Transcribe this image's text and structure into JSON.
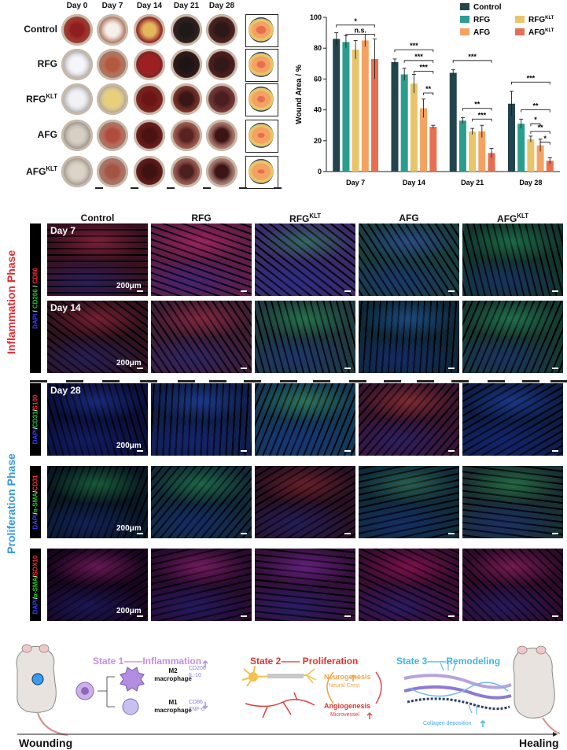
{
  "photo_panel": {
    "days": [
      "Day 0",
      "Day 7",
      "Day 14",
      "Day 21",
      "Day 28"
    ],
    "groups": [
      "Control",
      "RFG",
      "RFG",
      "AFG",
      "AFG"
    ],
    "group_sups": [
      "",
      "",
      "KLT",
      "",
      "KLT"
    ]
  },
  "stains": {
    "row1": [
      {
        "t": "DAPI",
        "c": "#3344ff"
      },
      {
        "t": " / ",
        "c": "#ffffff"
      },
      {
        "t": "CD206",
        "c": "#22cc33"
      },
      {
        "t": " / ",
        "c": "#ffffff"
      },
      {
        "t": "CD86",
        "c": "#ff3333"
      }
    ],
    "row3": [
      {
        "t": "DAPI",
        "c": "#3344ff"
      },
      {
        "t": "/",
        "c": "#ffffff"
      },
      {
        "t": "CD31",
        "c": "#22cc33"
      },
      {
        "t": "/",
        "c": "#ffffff"
      },
      {
        "t": "S100",
        "c": "#ff3333"
      }
    ],
    "row4": [
      {
        "t": "DAPI",
        "c": "#3344ff"
      },
      {
        "t": "/",
        "c": "#ffffff"
      },
      {
        "t": "α-SMA",
        "c": "#22cc33"
      },
      {
        "t": "/",
        "c": "#ffffff"
      },
      {
        "t": "CD31",
        "c": "#ff3333"
      }
    ],
    "row5": [
      {
        "t": "DAPI",
        "c": "#3344ff"
      },
      {
        "t": "/",
        "c": "#ffffff"
      },
      {
        "t": "α-SMA",
        "c": "#22cc33"
      },
      {
        "t": "/",
        "c": "#ffffff"
      },
      {
        "t": "SOX10",
        "c": "#ff3333"
      }
    ]
  },
  "fluor": {
    "columns": [
      "Control",
      "RFG",
      "RFG",
      "AFG",
      "AFG"
    ],
    "column_sups": [
      "",
      "",
      "KLT",
      "",
      "KLT"
    ],
    "day_labels": [
      "Day 7",
      "Day 14",
      "Day 28"
    ],
    "scale_text": "200μm",
    "phases": {
      "inflammation": "Inflammation Phase",
      "proliferation": "Proliferation Phase"
    }
  },
  "schematic": {
    "state1": "State 1——Inflammation",
    "state2": "State 2—— Proliferation",
    "state3": "State 3——Remodeling",
    "m2": "M2",
    "m2b": "macrophage",
    "m1": "M1",
    "m1b": "macrophage",
    "cd206": "CD206",
    "il10": "IL-10",
    "cd86": "CD86",
    "tnf": "TNF-α",
    "neuro": "Neurogenesis",
    "neural_crest": "Neural Crest",
    "angio": "Angiogenesis",
    "microvessel": "Microvessel",
    "collagen": "Collagen deposition",
    "wounding": "Wounding",
    "healing": "Healing"
  },
  "chart_data": {
    "type": "bar",
    "title": "",
    "xlabel": "",
    "ylabel": "Wound Area / %",
    "ylim": [
      0,
      100
    ],
    "yticks": [
      0,
      20,
      40,
      60,
      80,
      100
    ],
    "categories": [
      "Day 7",
      "Day 14",
      "Day 21",
      "Day 28"
    ],
    "legend_position": "top-right",
    "series": [
      {
        "name": "Control",
        "sup": "",
        "color": "#22444f",
        "values": [
          86,
          71,
          64,
          44
        ],
        "errors": [
          4,
          2,
          2,
          8
        ]
      },
      {
        "name": "RFG",
        "sup": "",
        "color": "#2a9d8f",
        "values": [
          84,
          63,
          33,
          31
        ],
        "errors": [
          4,
          4,
          2,
          3
        ]
      },
      {
        "name": "RFG",
        "sup": "KLT",
        "color": "#e9c46a",
        "values": [
          79,
          57,
          26,
          21
        ],
        "errors": [
          6,
          6,
          2,
          2
        ]
      },
      {
        "name": "AFG",
        "sup": "",
        "color": "#f4a261",
        "values": [
          85,
          41,
          26,
          17
        ],
        "errors": [
          4,
          6,
          4,
          4
        ]
      },
      {
        "name": "AFG",
        "sup": "KLT",
        "color": "#e76f51",
        "values": [
          73,
          29,
          12,
          7
        ],
        "errors": [
          13,
          1,
          3,
          2
        ]
      }
    ],
    "significance": [
      {
        "g": 0,
        "from": 0,
        "to": 4,
        "label": "*",
        "y": 95
      },
      {
        "g": 0,
        "from": 1,
        "to": 4,
        "label": "n.s.",
        "y": 89
      },
      {
        "g": 1,
        "from": 0,
        "to": 4,
        "label": "***",
        "y": 79
      },
      {
        "g": 1,
        "from": 1,
        "to": 4,
        "label": "***",
        "y": 72
      },
      {
        "g": 1,
        "from": 2,
        "to": 4,
        "label": "***",
        "y": 65
      },
      {
        "g": 1,
        "from": 3,
        "to": 4,
        "label": "**",
        "y": 51
      },
      {
        "g": 2,
        "from": 0,
        "to": 4,
        "label": "***",
        "y": 72
      },
      {
        "g": 2,
        "from": 1,
        "to": 4,
        "label": "**",
        "y": 41
      },
      {
        "g": 2,
        "from": 2,
        "to": 4,
        "label": "***",
        "y": 34
      },
      {
        "g": 3,
        "from": 0,
        "to": 4,
        "label": "***",
        "y": 58
      },
      {
        "g": 3,
        "from": 1,
        "to": 4,
        "label": "**",
        "y": 40
      },
      {
        "g": 3,
        "from": 2,
        "to": 3,
        "label": "*",
        "y": 31
      },
      {
        "g": 3,
        "from": 2,
        "to": 4,
        "label": "**",
        "y": 26
      },
      {
        "g": 3,
        "from": 3,
        "to": 4,
        "label": "*",
        "y": 19
      }
    ]
  }
}
